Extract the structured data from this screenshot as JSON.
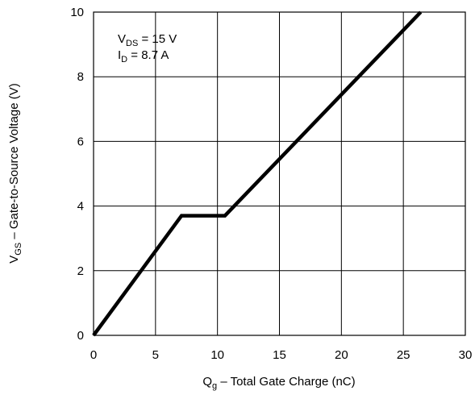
{
  "chart_data": {
    "type": "line",
    "xlabel": {
      "main": "Q",
      "sub": "g",
      "rest": " – Total Gate Charge (nC)"
    },
    "ylabel": {
      "main": "V",
      "sub": "GS",
      "rest": " – Gate-to-Source Voltage (V)"
    },
    "xlim": [
      0,
      30
    ],
    "ylim": [
      0,
      10
    ],
    "x_ticks": [
      0,
      5,
      10,
      15,
      20,
      25,
      30
    ],
    "y_ticks": [
      0,
      2,
      4,
      6,
      8,
      10
    ],
    "x_tick_labels": [
      "0",
      "5",
      "10",
      "15",
      "20",
      "25",
      "30"
    ],
    "y_tick_labels": [
      "0",
      "2",
      "4",
      "6",
      "8",
      "10"
    ],
    "grid": true,
    "annotations": [
      {
        "main": "V",
        "sub": "DS",
        "rest": " = 15 V"
      },
      {
        "main": "I",
        "sub": "D",
        "rest": " = 8.7 A"
      }
    ],
    "series": [
      {
        "x": [
          0,
          7.1,
          10.6,
          26.4
        ],
        "y": [
          0,
          3.7,
          3.7,
          10
        ],
        "color": "#000000"
      }
    ]
  }
}
